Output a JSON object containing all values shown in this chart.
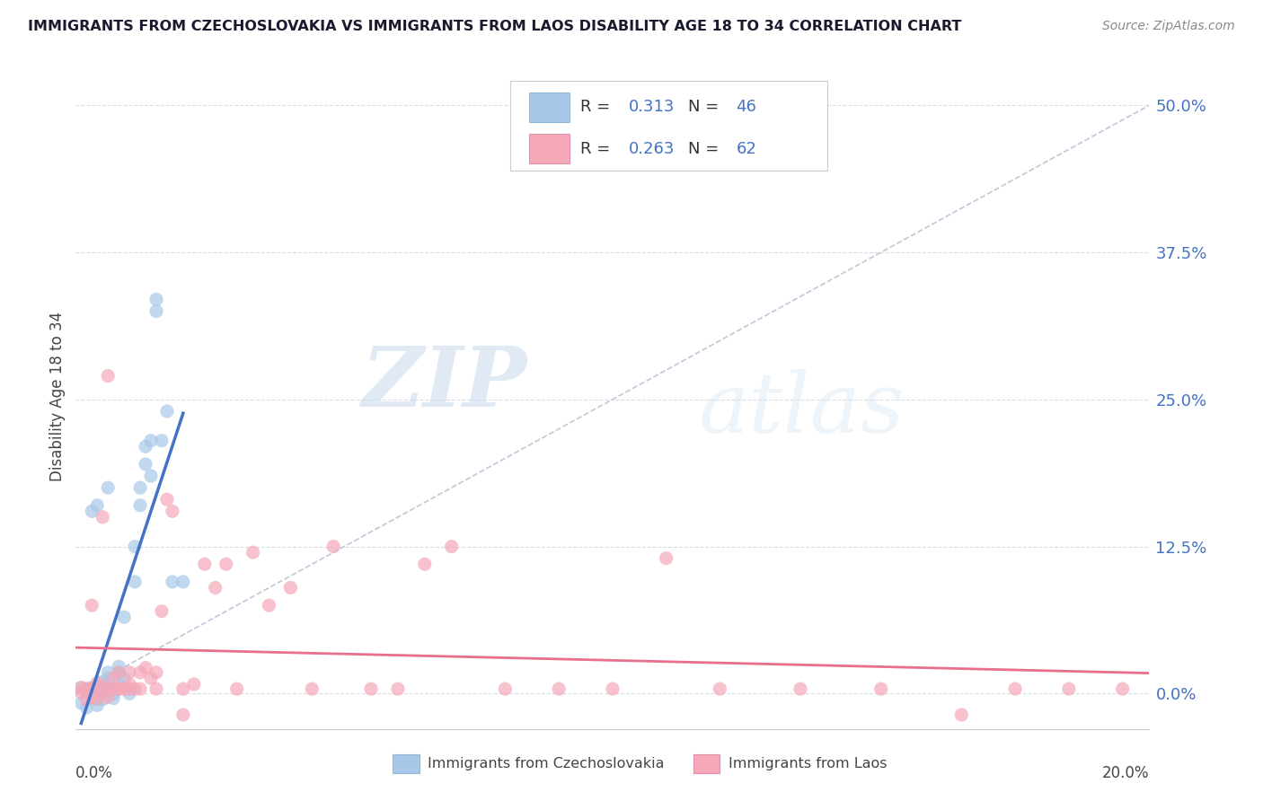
{
  "title": "IMMIGRANTS FROM CZECHOSLOVAKIA VS IMMIGRANTS FROM LAOS DISABILITY AGE 18 TO 34 CORRELATION CHART",
  "source": "Source: ZipAtlas.com",
  "ylabel": "Disability Age 18 to 34",
  "ytick_values": [
    0.0,
    0.125,
    0.25,
    0.375,
    0.5
  ],
  "ytick_labels": [
    "0.0%",
    "12.5%",
    "25.0%",
    "37.5%",
    "50.0%"
  ],
  "xlim": [
    0.0,
    0.2
  ],
  "ylim": [
    -0.03,
    0.535
  ],
  "czecho_color": "#a8c8e8",
  "laos_color": "#f4a8b8",
  "czecho_line_color": "#4472c4",
  "laos_line_color": "#e8708c",
  "diagonal_color": "#c0c8d8",
  "R_czecho": 0.313,
  "N_czecho": 46,
  "R_laos": 0.263,
  "N_laos": 62,
  "watermark_zip": "ZIP",
  "watermark_atlas": "atlas",
  "czecho_points_x": [
    0.001,
    0.001,
    0.002,
    0.002,
    0.003,
    0.003,
    0.003,
    0.003,
    0.004,
    0.004,
    0.004,
    0.004,
    0.005,
    0.005,
    0.005,
    0.005,
    0.006,
    0.006,
    0.006,
    0.007,
    0.007,
    0.007,
    0.008,
    0.008,
    0.008,
    0.009,
    0.009,
    0.01,
    0.01,
    0.011,
    0.011,
    0.012,
    0.012,
    0.013,
    0.013,
    0.014,
    0.014,
    0.015,
    0.015,
    0.016,
    0.017,
    0.018,
    0.02,
    0.003,
    0.004,
    0.006
  ],
  "czecho_points_y": [
    0.005,
    -0.008,
    0.002,
    -0.012,
    0.003,
    0.001,
    -0.003,
    0.005,
    0.004,
    0.001,
    -0.005,
    -0.01,
    0.01,
    0.005,
    -0.005,
    0.003,
    0.018,
    0.013,
    0.005,
    0.0,
    0.004,
    -0.004,
    0.023,
    0.018,
    0.009,
    0.013,
    0.065,
    0.0,
    0.004,
    0.125,
    0.095,
    0.16,
    0.175,
    0.195,
    0.21,
    0.215,
    0.185,
    0.325,
    0.335,
    0.215,
    0.24,
    0.095,
    0.095,
    0.155,
    0.16,
    0.175
  ],
  "laos_points_x": [
    0.001,
    0.001,
    0.002,
    0.002,
    0.003,
    0.003,
    0.004,
    0.004,
    0.005,
    0.005,
    0.006,
    0.006,
    0.007,
    0.007,
    0.008,
    0.008,
    0.009,
    0.01,
    0.01,
    0.011,
    0.012,
    0.013,
    0.014,
    0.015,
    0.016,
    0.017,
    0.018,
    0.02,
    0.022,
    0.024,
    0.026,
    0.028,
    0.03,
    0.033,
    0.036,
    0.04,
    0.044,
    0.048,
    0.055,
    0.06,
    0.065,
    0.07,
    0.08,
    0.09,
    0.1,
    0.11,
    0.12,
    0.135,
    0.15,
    0.165,
    0.175,
    0.185,
    0.195,
    0.002,
    0.003,
    0.005,
    0.006,
    0.008,
    0.01,
    0.012,
    0.015,
    0.02
  ],
  "laos_points_y": [
    0.005,
    0.001,
    0.004,
    -0.005,
    0.005,
    -0.003,
    0.009,
    -0.004,
    0.001,
    0.006,
    0.004,
    -0.003,
    0.013,
    0.004,
    0.018,
    0.004,
    0.004,
    0.008,
    0.018,
    0.004,
    0.018,
    0.022,
    0.013,
    0.018,
    0.07,
    0.165,
    0.155,
    0.004,
    0.008,
    0.11,
    0.09,
    0.11,
    0.004,
    0.12,
    0.075,
    0.09,
    0.004,
    0.125,
    0.004,
    0.004,
    0.11,
    0.125,
    0.004,
    0.004,
    0.004,
    0.115,
    0.004,
    0.004,
    0.004,
    -0.018,
    0.004,
    0.004,
    0.004,
    0.004,
    0.075,
    0.15,
    0.27,
    0.004,
    0.004,
    0.004,
    0.004,
    -0.018
  ]
}
